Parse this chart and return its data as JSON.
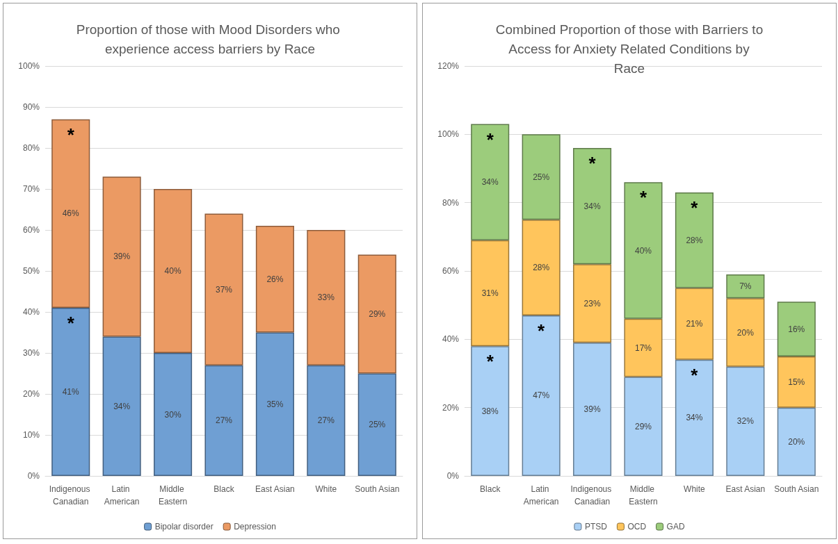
{
  "chart_data": [
    {
      "type": "bar",
      "title": "Proportion of those with Mood Disorders who experience access barriers by Race",
      "categories": [
        "Indigenous Canadian",
        "Latin American",
        "Middle Eastern",
        "Black",
        "East Asian",
        "White",
        "South Asian"
      ],
      "series": [
        {
          "name": "Bipolar disorder",
          "color": "#6f9fd3",
          "values": [
            41,
            34,
            30,
            27,
            35,
            27,
            25
          ],
          "value_labels": [
            "41%",
            "34%",
            "30%",
            "27%",
            "35%",
            "27%",
            "25%"
          ]
        },
        {
          "name": "Depression",
          "color": "#eb9a63",
          "values": [
            46,
            39,
            40,
            37,
            26,
            33,
            29
          ],
          "value_labels": [
            "46%",
            "39%",
            "40%",
            "37%",
            "26%",
            "33%",
            "29%"
          ]
        }
      ],
      "stacked": true,
      "ylim": [
        0,
        100
      ],
      "yticks": [
        {
          "value": 0,
          "label": "0%"
        },
        {
          "value": 10,
          "label": "10%"
        },
        {
          "value": 20,
          "label": "20%"
        },
        {
          "value": 30,
          "label": "30%"
        },
        {
          "value": 40,
          "label": "40%"
        },
        {
          "value": 50,
          "label": "50%"
        },
        {
          "value": 60,
          "label": "60%"
        },
        {
          "value": 70,
          "label": "70%"
        },
        {
          "value": 80,
          "label": "80%"
        },
        {
          "value": 90,
          "label": "90%"
        },
        {
          "value": 100,
          "label": "100%"
        }
      ],
      "grid": "y",
      "legend": "bottom",
      "annotations": [
        {
          "text": "*",
          "x": "Indigenous Canadian",
          "y": 87
        },
        {
          "text": "*",
          "x": "Indigenous Canadian",
          "y": 41
        }
      ]
    },
    {
      "type": "bar",
      "title": "Combined Proportion of those with Barriers to Access for Anxiety Related Conditions by Race",
      "categories": [
        "Black",
        "Latin American",
        "Indigenous Canadian",
        "Middle Eastern",
        "White",
        "East Asian",
        "South Asian"
      ],
      "series": [
        {
          "name": "PTSD",
          "color": "#a9d0f5",
          "values": [
            38,
            47,
            39,
            29,
            34,
            32,
            20
          ],
          "value_labels": [
            "38%",
            "47%",
            "39%",
            "29%",
            "34%",
            "32%",
            "20%"
          ]
        },
        {
          "name": "OCD",
          "color": "#ffc55c",
          "values": [
            31,
            28,
            23,
            17,
            21,
            20,
            15
          ],
          "value_labels": [
            "31%",
            "28%",
            "23%",
            "17%",
            "21%",
            "20%",
            "15%"
          ]
        },
        {
          "name": "GAD",
          "color": "#9ccc7c",
          "values": [
            34,
            25,
            34,
            40,
            28,
            7,
            16
          ],
          "value_labels": [
            "34%",
            "25%",
            "34%",
            "40%",
            "28%",
            "7%",
            "16%"
          ]
        }
      ],
      "stacked": true,
      "ylim": [
        0,
        120
      ],
      "yticks": [
        {
          "value": 0,
          "label": "0%"
        },
        {
          "value": 20,
          "label": "20%"
        },
        {
          "value": 40,
          "label": "40%"
        },
        {
          "value": 60,
          "label": "60%"
        },
        {
          "value": 80,
          "label": "80%"
        },
        {
          "value": 100,
          "label": "100%"
        },
        {
          "value": 120,
          "label": "120%"
        }
      ],
      "grid": "y",
      "legend": "bottom",
      "annotations": [
        {
          "text": "*",
          "x": "Black",
          "y": 103
        },
        {
          "text": "*",
          "x": "Black",
          "y": 38
        },
        {
          "text": "*",
          "x": "Latin American",
          "y": 47
        },
        {
          "text": "*",
          "x": "Indigenous Canadian",
          "y": 96
        },
        {
          "text": "*",
          "x": "Middle Eastern",
          "y": 86
        },
        {
          "text": "*",
          "x": "White",
          "y": 83
        },
        {
          "text": "*",
          "x": "White",
          "y": 34
        }
      ]
    }
  ]
}
